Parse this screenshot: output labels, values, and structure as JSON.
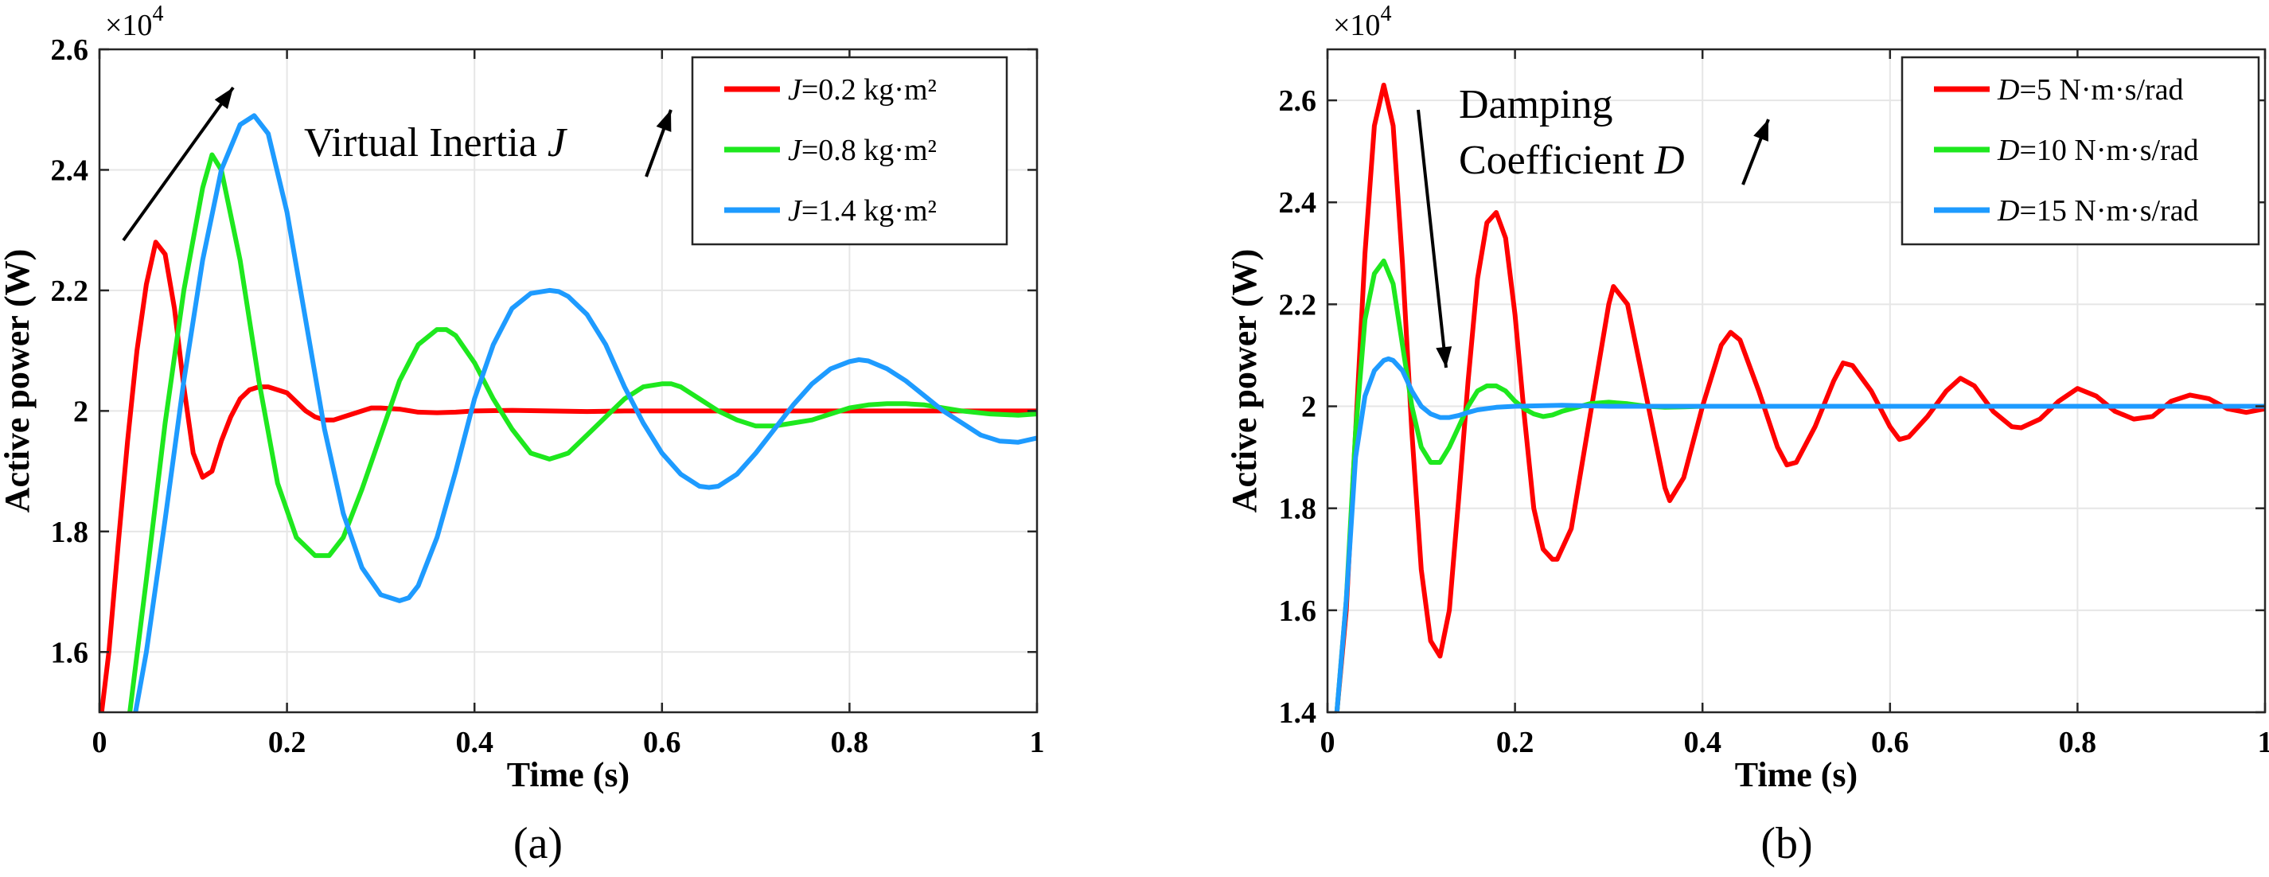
{
  "figure": {
    "panels": [
      {
        "label": "(a)",
        "exponent_label": "×10",
        "exponent_power": "4",
        "annotation": {
          "text": "Virtual Inertia ",
          "symbol": "J"
        },
        "legend": [
          "J=0.2 kg·m²",
          "J=0.8 kg·m²",
          "J=1.4 kg·m²"
        ]
      },
      {
        "label": "(b)",
        "exponent_label": "×10",
        "exponent_power": "4",
        "annotation": {
          "line1": "Damping",
          "line2_text": "Coefficient ",
          "symbol": "D"
        },
        "legend": [
          "D=5 N·m·s/rad",
          "D=10 N·m·s/rad",
          "D=15 N·m·s/rad"
        ]
      }
    ]
  },
  "chart_data": [
    {
      "type": "line",
      "xlabel": "Time (s)",
      "ylabel": "Active power (W)",
      "xlim": [
        0,
        1
      ],
      "ylim": [
        1.5,
        2.6
      ],
      "y_scale_factor": "×10^4",
      "xticks": [
        "0",
        "0.2",
        "0.4",
        "0.6",
        "0.8",
        "1"
      ],
      "yticks": [
        "1.6",
        "1.8",
        "2",
        "2.2",
        "2.4",
        "2.6"
      ],
      "grid": true,
      "legend_position": "top-right",
      "series": [
        {
          "name": "J=0.2 kg·m²",
          "color": "#ff0000",
          "x": [
            0,
            0.01,
            0.02,
            0.03,
            0.04,
            0.05,
            0.06,
            0.07,
            0.08,
            0.09,
            0.1,
            0.11,
            0.12,
            0.13,
            0.14,
            0.15,
            0.16,
            0.17,
            0.18,
            0.19,
            0.2,
            0.21,
            0.22,
            0.23,
            0.24,
            0.25,
            0.26,
            0.27,
            0.28,
            0.29,
            0.3,
            0.32,
            0.34,
            0.36,
            0.38,
            0.4,
            0.44,
            0.48,
            0.52,
            0.56,
            0.6,
            0.65,
            0.7,
            0.75,
            0.8,
            0.85,
            0.9,
            0.95,
            1.0
          ],
          "y": [
            1.47,
            1.6,
            1.78,
            1.95,
            2.1,
            2.21,
            2.28,
            2.26,
            2.17,
            2.04,
            1.93,
            1.89,
            1.9,
            1.95,
            1.99,
            2.02,
            2.035,
            2.04,
            2.04,
            2.035,
            2.03,
            2.015,
            2.0,
            1.99,
            1.985,
            1.985,
            1.99,
            1.995,
            2.0,
            2.005,
            2.005,
            2.003,
            1.998,
            1.997,
            1.998,
            2.0,
            2.001,
            2.0,
            1.999,
            2.0,
            2.0,
            2.0,
            2.0,
            2.0,
            2.0,
            2.0,
            2.0,
            2.0,
            2.0
          ]
        },
        {
          "name": "J=0.8 kg·m²",
          "color": "#1ee81e",
          "x": [
            0.03,
            0.05,
            0.07,
            0.09,
            0.11,
            0.12,
            0.13,
            0.15,
            0.17,
            0.19,
            0.21,
            0.23,
            0.245,
            0.26,
            0.28,
            0.3,
            0.32,
            0.34,
            0.36,
            0.37,
            0.38,
            0.4,
            0.42,
            0.44,
            0.46,
            0.48,
            0.49,
            0.5,
            0.52,
            0.54,
            0.56,
            0.58,
            0.6,
            0.61,
            0.62,
            0.64,
            0.66,
            0.68,
            0.7,
            0.72,
            0.74,
            0.76,
            0.78,
            0.8,
            0.82,
            0.84,
            0.86,
            0.88,
            0.9,
            0.92,
            0.95,
            0.98,
            1.0
          ],
          "y": [
            1.47,
            1.72,
            1.98,
            2.2,
            2.37,
            2.425,
            2.4,
            2.25,
            2.05,
            1.88,
            1.79,
            1.76,
            1.76,
            1.79,
            1.87,
            1.96,
            2.05,
            2.11,
            2.135,
            2.135,
            2.125,
            2.08,
            2.02,
            1.97,
            1.93,
            1.92,
            1.925,
            1.93,
            1.96,
            1.99,
            2.02,
            2.04,
            2.045,
            2.045,
            2.04,
            2.02,
            2.0,
            1.985,
            1.975,
            1.975,
            1.98,
            1.985,
            1.995,
            2.005,
            2.01,
            2.012,
            2.012,
            2.01,
            2.005,
            2.0,
            1.995,
            1.993,
            1.995
          ]
        },
        {
          "name": "J=1.4 kg·m²",
          "color": "#1e9bff",
          "x": [
            0.035,
            0.05,
            0.07,
            0.09,
            0.11,
            0.13,
            0.15,
            0.165,
            0.18,
            0.2,
            0.22,
            0.24,
            0.26,
            0.28,
            0.3,
            0.32,
            0.33,
            0.34,
            0.36,
            0.38,
            0.4,
            0.42,
            0.44,
            0.46,
            0.48,
            0.49,
            0.5,
            0.52,
            0.54,
            0.56,
            0.58,
            0.6,
            0.62,
            0.64,
            0.65,
            0.66,
            0.68,
            0.7,
            0.72,
            0.74,
            0.76,
            0.78,
            0.8,
            0.81,
            0.82,
            0.84,
            0.86,
            0.88,
            0.9,
            0.92,
            0.94,
            0.96,
            0.98,
            1.0
          ],
          "y": [
            1.47,
            1.6,
            1.82,
            2.05,
            2.25,
            2.4,
            2.475,
            2.49,
            2.46,
            2.33,
            2.15,
            1.97,
            1.83,
            1.74,
            1.695,
            1.685,
            1.69,
            1.71,
            1.79,
            1.9,
            2.02,
            2.11,
            2.17,
            2.195,
            2.2,
            2.198,
            2.19,
            2.16,
            2.11,
            2.04,
            1.98,
            1.93,
            1.895,
            1.875,
            1.873,
            1.875,
            1.895,
            1.93,
            1.97,
            2.01,
            2.045,
            2.07,
            2.082,
            2.085,
            2.083,
            2.07,
            2.05,
            2.025,
            2.0,
            1.98,
            1.96,
            1.95,
            1.948,
            1.955
          ]
        }
      ]
    },
    {
      "type": "line",
      "xlabel": "Time (s)",
      "ylabel": "Active power (W)",
      "xlim": [
        0,
        1
      ],
      "ylim": [
        1.4,
        2.7
      ],
      "y_scale_factor": "×10^4",
      "xticks": [
        "0",
        "0.2",
        "0.4",
        "0.6",
        "0.8",
        "1"
      ],
      "yticks": [
        "1.4",
        "1.6",
        "1.8",
        "2",
        "2.2",
        "2.4",
        "2.6"
      ],
      "grid": true,
      "legend_position": "top-right",
      "series": [
        {
          "name": "D=5 N·m·s/rad",
          "color": "#ff0000",
          "x": [
            0.01,
            0.02,
            0.03,
            0.04,
            0.05,
            0.06,
            0.07,
            0.08,
            0.09,
            0.1,
            0.11,
            0.12,
            0.13,
            0.14,
            0.15,
            0.16,
            0.17,
            0.18,
            0.19,
            0.2,
            0.21,
            0.22,
            0.23,
            0.24,
            0.245,
            0.26,
            0.28,
            0.3,
            0.305,
            0.32,
            0.34,
            0.36,
            0.365,
            0.38,
            0.4,
            0.42,
            0.43,
            0.44,
            0.46,
            0.48,
            0.49,
            0.5,
            0.52,
            0.54,
            0.55,
            0.56,
            0.58,
            0.6,
            0.61,
            0.62,
            0.64,
            0.66,
            0.675,
            0.69,
            0.71,
            0.73,
            0.74,
            0.76,
            0.78,
            0.8,
            0.82,
            0.84,
            0.86,
            0.88,
            0.9,
            0.92,
            0.94,
            0.96,
            0.98,
            1.0
          ],
          "y": [
            1.4,
            1.6,
            1.95,
            2.3,
            2.55,
            2.63,
            2.55,
            2.28,
            1.95,
            1.68,
            1.54,
            1.51,
            1.6,
            1.82,
            2.05,
            2.25,
            2.36,
            2.38,
            2.33,
            2.18,
            1.98,
            1.8,
            1.72,
            1.7,
            1.7,
            1.76,
            1.98,
            2.2,
            2.235,
            2.2,
            2.02,
            1.84,
            1.815,
            1.86,
            2.0,
            2.12,
            2.145,
            2.13,
            2.03,
            1.92,
            1.885,
            1.89,
            1.96,
            2.05,
            2.085,
            2.08,
            2.03,
            1.96,
            1.935,
            1.94,
            1.98,
            2.03,
            2.055,
            2.04,
            1.99,
            1.96,
            1.958,
            1.975,
            2.01,
            2.035,
            2.02,
            1.99,
            1.975,
            1.98,
            2.01,
            2.022,
            2.015,
            1.995,
            1.988,
            1.995
          ]
        },
        {
          "name": "D=10 N·m·s/rad",
          "color": "#1ee81e",
          "x": [
            0.01,
            0.02,
            0.03,
            0.04,
            0.05,
            0.06,
            0.07,
            0.08,
            0.09,
            0.1,
            0.11,
            0.12,
            0.13,
            0.14,
            0.15,
            0.16,
            0.17,
            0.18,
            0.19,
            0.2,
            0.21,
            0.22,
            0.23,
            0.24,
            0.25,
            0.26,
            0.28,
            0.3,
            0.32,
            0.34,
            0.36,
            0.38,
            0.4,
            0.45,
            0.5,
            0.6,
            0.7,
            0.8,
            0.9,
            1.0
          ],
          "y": [
            1.4,
            1.62,
            1.95,
            2.17,
            2.26,
            2.285,
            2.24,
            2.12,
            2.0,
            1.92,
            1.89,
            1.89,
            1.92,
            1.96,
            2.0,
            2.03,
            2.04,
            2.04,
            2.03,
            2.01,
            1.995,
            1.985,
            1.98,
            1.983,
            1.99,
            1.995,
            2.005,
            2.008,
            2.005,
            2.0,
            1.998,
            1.999,
            2.0,
            2.0,
            2.0,
            2.0,
            2.0,
            2.0,
            2.0,
            2.0
          ]
        },
        {
          "name": "D=15 N·m·s/rad",
          "color": "#1e9bff",
          "x": [
            0.01,
            0.02,
            0.03,
            0.04,
            0.05,
            0.06,
            0.065,
            0.07,
            0.08,
            0.09,
            0.1,
            0.11,
            0.12,
            0.13,
            0.14,
            0.15,
            0.16,
            0.18,
            0.2,
            0.25,
            0.3,
            0.4,
            0.5,
            0.6,
            0.7,
            0.8,
            0.9,
            1.0
          ],
          "y": [
            1.4,
            1.62,
            1.9,
            2.02,
            2.07,
            2.09,
            2.093,
            2.09,
            2.07,
            2.03,
            2.0,
            1.985,
            1.978,
            1.978,
            1.982,
            1.988,
            1.993,
            1.998,
            2.0,
            2.002,
            2.0,
            2.0,
            2.0,
            2.0,
            2.0,
            2.0,
            2.0,
            2.0
          ]
        }
      ]
    }
  ]
}
